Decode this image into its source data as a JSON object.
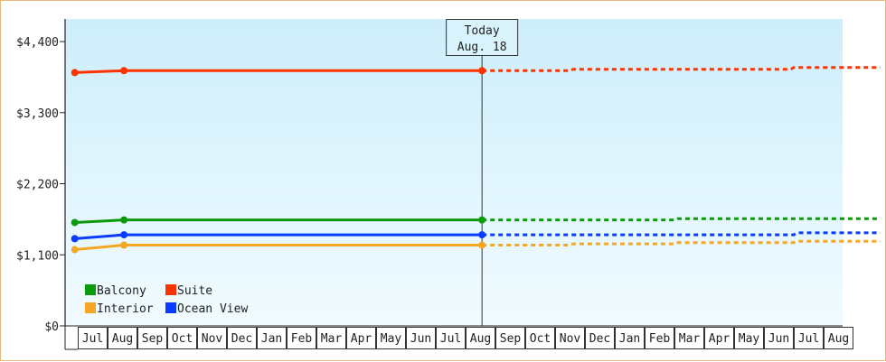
{
  "chart_data": {
    "type": "line",
    "title": "",
    "xlabel": "",
    "ylabel": "",
    "ylim": [
      0,
      4750
    ],
    "y_ticks": [
      {
        "value": 0,
        "label": "$0"
      },
      {
        "value": 1100,
        "label": "$1,100"
      },
      {
        "value": 2200,
        "label": "$2,200"
      },
      {
        "value": 3300,
        "label": "$3,300"
      },
      {
        "value": 4400,
        "label": "$4,400"
      }
    ],
    "months": [
      "Jul",
      "Aug",
      "Sep",
      "Oct",
      "Nov",
      "Dec",
      "Jan",
      "Feb",
      "Mar",
      "Apr",
      "May",
      "Jun",
      "Jul",
      "Aug",
      "Sep",
      "Oct",
      "Nov",
      "Dec",
      "Jan",
      "Feb",
      "Mar",
      "Apr",
      "May",
      "Jun",
      "Jul",
      "Aug"
    ],
    "today": {
      "line1": "Today",
      "line2": "Aug. 18",
      "x": 13.55
    },
    "grid": false,
    "legend_position": "bottom-left",
    "series": [
      {
        "name": "Balcony",
        "color": "#0b9a0b",
        "actual": [
          [
            -0.1,
            1600
          ],
          [
            1.55,
            1640
          ],
          [
            13.55,
            1640
          ]
        ],
        "forecast": [
          [
            13.55,
            1640
          ],
          [
            20,
            1640
          ],
          [
            20.1,
            1660
          ],
          [
            26.9,
            1660
          ]
        ]
      },
      {
        "name": "Suite",
        "color": "#ff3300",
        "actual": [
          [
            -0.1,
            3920
          ],
          [
            1.55,
            3950
          ],
          [
            13.55,
            3950
          ]
        ],
        "forecast": [
          [
            13.55,
            3950
          ],
          [
            16.5,
            3950
          ],
          [
            16.6,
            3970
          ],
          [
            23.9,
            3970
          ],
          [
            24.0,
            4000
          ],
          [
            26.9,
            4000
          ]
        ]
      },
      {
        "name": "Interior",
        "color": "#f5a623",
        "actual": [
          [
            -0.1,
            1180
          ],
          [
            1.55,
            1250
          ],
          [
            13.55,
            1250
          ]
        ],
        "forecast": [
          [
            13.55,
            1250
          ],
          [
            16.5,
            1250
          ],
          [
            16.6,
            1270
          ],
          [
            20,
            1270
          ],
          [
            20.1,
            1290
          ],
          [
            24.0,
            1290
          ],
          [
            24.1,
            1310
          ],
          [
            26.9,
            1310
          ]
        ]
      },
      {
        "name": "Ocean View",
        "color": "#0a3cff",
        "actual": [
          [
            -0.1,
            1350
          ],
          [
            1.55,
            1410
          ],
          [
            13.55,
            1410
          ]
        ],
        "forecast": [
          [
            13.55,
            1410
          ],
          [
            24.0,
            1410
          ],
          [
            24.1,
            1440
          ],
          [
            26.9,
            1440
          ]
        ]
      }
    ]
  }
}
